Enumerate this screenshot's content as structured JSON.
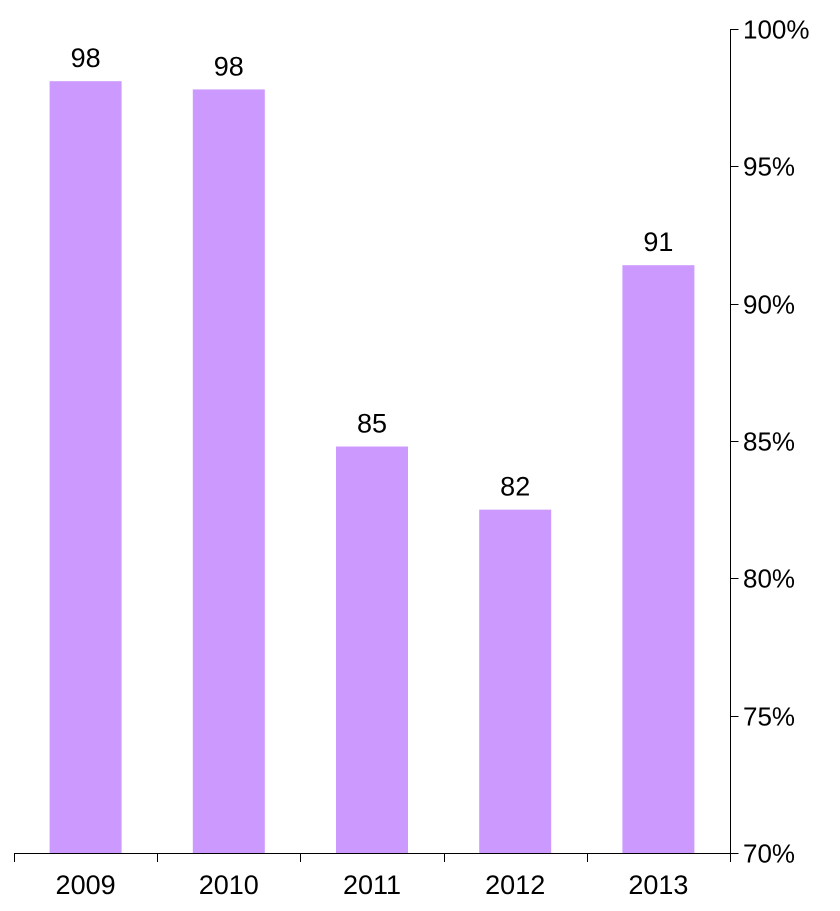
{
  "chart_data": {
    "type": "bar",
    "title": "",
    "xlabel": "",
    "ylabel": "",
    "categories": [
      "2009",
      "2010",
      "2011",
      "2012",
      "2013"
    ],
    "values": [
      98.1,
      97.8,
      84.8,
      82.5,
      91.4
    ],
    "data_labels": [
      "98",
      "98",
      "85",
      "82",
      "91"
    ],
    "ylim": [
      70,
      100
    ],
    "y_axis_position": "right",
    "y_ticks": [
      70,
      75,
      80,
      85,
      90,
      95,
      100
    ],
    "y_tick_labels": [
      "70%",
      "75%",
      "80%",
      "85%",
      "90%",
      "95%",
      "100%"
    ],
    "bar_color": "#cc99ff",
    "grid": false,
    "legend": "none"
  }
}
